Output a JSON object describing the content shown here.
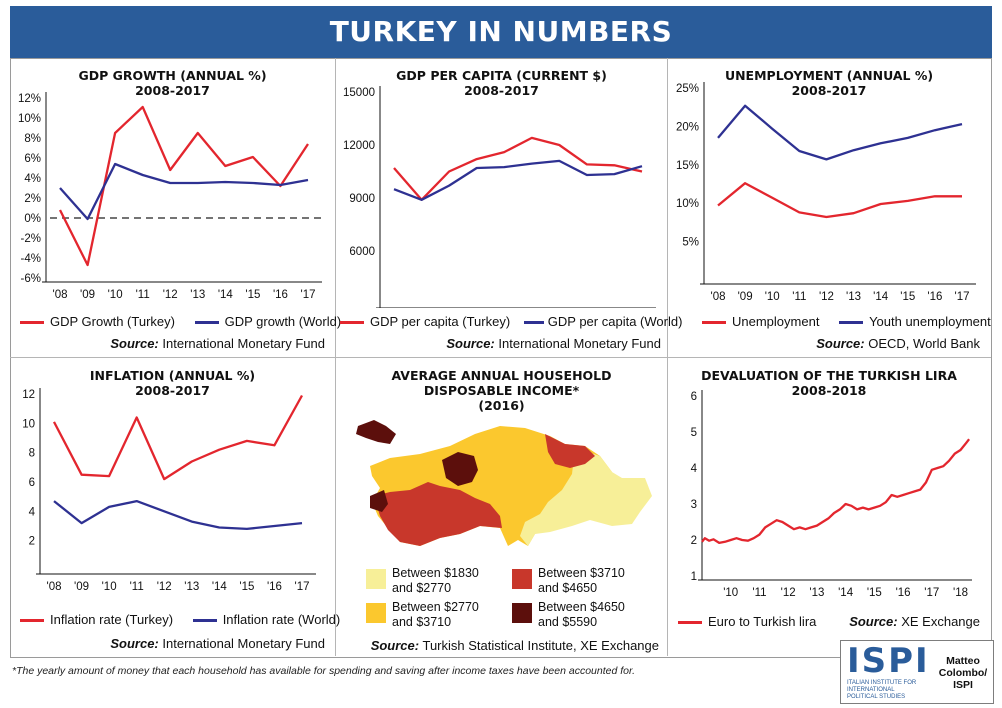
{
  "header": {
    "title": "TURKEY IN NUMBERS"
  },
  "footnote": "*The yearly amount of money that each household has available for spending and saving after income taxes have been accounted for.",
  "logo": {
    "name": "ISPI",
    "subtitle": "ITALIAN INSTITUTE FOR INTERNATIONAL POLITICAL STUDIES",
    "author": "Matteo Colombo/ ISPI"
  },
  "colors": {
    "red": "#e3262e",
    "navy": "#2e3192",
    "header_bg": "#2a5c9a"
  },
  "panels": {
    "gdp_growth": {
      "title": "GDP GROWTH (ANNUAL %)",
      "subtitle": "2008-2017",
      "legend": [
        "GDP Growth (Turkey)",
        "GDP growth (World)"
      ],
      "source_label": "Source:",
      "source_text": "International Monetary Fund"
    },
    "gdp_per_capita": {
      "title": "GDP PER CAPITA (CURRENT $)",
      "subtitle": "2008-2017",
      "legend": [
        "GDP per capita (Turkey)",
        "GDP per capita (World)"
      ],
      "source_label": "Source:",
      "source_text": "International Monetary Fund"
    },
    "unemployment": {
      "title": "UNEMPLOYMENT (ANNUAL %)",
      "subtitle": "2008-2017",
      "legend": [
        "Unemployment",
        "Youth unemployment"
      ],
      "source_label": "Source:",
      "source_text": "OECD, World Bank"
    },
    "inflation": {
      "title": "INFLATION (ANNUAL %)",
      "subtitle": "2008-2017",
      "legend": [
        "Inflation rate (Turkey)",
        "Inflation rate (World)"
      ],
      "source_label": "Source:",
      "source_text": "International Monetary Fund"
    },
    "income": {
      "title": "AVERAGE ANNUAL HOUSEHOLD",
      "title2": "DISPOSABLE INCOME*",
      "subtitle": "(2016)",
      "legend": [
        {
          "text": "Between $1830 and $2770",
          "color": "#f7ef98"
        },
        {
          "text": "Between $3710 and $4650",
          "color": "#c8372b"
        },
        {
          "text": "Between $2770 and $3710",
          "color": "#fbc82e"
        },
        {
          "text": "Between $4650 and $5590",
          "color": "#5c0f0c"
        }
      ],
      "source_label": "Source:",
      "source_text": "Turkish Statistical Institute, XE Exchange"
    },
    "lira": {
      "title": "DEVALUATION OF THE TURKISH LIRA",
      "subtitle": "2008-2018",
      "legend": [
        "Euro to Turkish lira"
      ],
      "source_label": "Source:",
      "source_text": "XE Exchange"
    }
  },
  "chart_data": [
    {
      "id": "gdp_growth",
      "type": "line",
      "x": [
        "'08",
        "'09",
        "'10",
        "'11",
        "'12",
        "'13",
        "'14",
        "'15",
        "'16",
        "'17"
      ],
      "yticks": [
        "12%",
        "10%",
        "8%",
        "6%",
        "4%",
        "2%",
        "0%",
        "-2%",
        "-4%",
        "-6%"
      ],
      "ylim": [
        -6,
        12
      ],
      "zero_line": "dashed",
      "series": [
        {
          "name": "GDP Growth (Turkey)",
          "color": "#e3262e",
          "values": [
            0.8,
            -4.7,
            8.5,
            11.1,
            4.8,
            8.5,
            5.2,
            6.1,
            3.2,
            7.4
          ]
        },
        {
          "name": "GDP growth (World)",
          "color": "#2e3192",
          "values": [
            3.0,
            -0.1,
            5.4,
            4.3,
            3.5,
            3.5,
            3.6,
            3.5,
            3.3,
            3.8
          ]
        }
      ]
    },
    {
      "id": "gdp_per_capita",
      "type": "line",
      "x": [
        "'08",
        "'09",
        "'10",
        "'11",
        "'12",
        "'13",
        "'14",
        "'15",
        "'16",
        "'17"
      ],
      "yticks": [
        "15000",
        "12000",
        "9000",
        "6000"
      ],
      "ylim": [
        3000,
        15000
      ],
      "series": [
        {
          "name": "GDP per capita (Turkey)",
          "color": "#e3262e",
          "values": [
            10700,
            8900,
            10500,
            11200,
            11600,
            12400,
            12000,
            10900,
            10850,
            10500
          ]
        },
        {
          "name": "GDP per capita (World)",
          "color": "#2e3192",
          "values": [
            9500,
            8900,
            9700,
            10700,
            10750,
            10950,
            11100,
            10300,
            10350,
            10800
          ]
        }
      ]
    },
    {
      "id": "unemployment",
      "type": "line",
      "x": [
        "'08",
        "'09",
        "'10",
        "'11",
        "'12",
        "'13",
        "'14",
        "'15",
        "'16",
        "'17"
      ],
      "yticks": [
        "25%",
        "20%",
        "15%",
        "10%",
        "5%"
      ],
      "ylim": [
        0,
        25
      ],
      "series": [
        {
          "name": "Unemployment",
          "color": "#e3262e",
          "values": [
            9.7,
            12.6,
            10.7,
            8.8,
            8.2,
            8.7,
            9.9,
            10.3,
            10.9,
            10.9
          ]
        },
        {
          "name": "Youth unemployment",
          "color": "#2e3192",
          "values": [
            18.5,
            22.7,
            19.7,
            16.8,
            15.7,
            16.9,
            17.8,
            18.5,
            19.5,
            20.3
          ]
        }
      ]
    },
    {
      "id": "inflation",
      "type": "line",
      "x": [
        "'08",
        "'09",
        "'10",
        "'11",
        "'12",
        "'13",
        "'14",
        "'15",
        "'16",
        "'17"
      ],
      "yticks": [
        "12",
        "10",
        "8",
        "6",
        "4",
        "2"
      ],
      "ylim": [
        0,
        12
      ],
      "series": [
        {
          "name": "Inflation rate (Turkey)",
          "color": "#e3262e",
          "values": [
            10.1,
            6.5,
            6.4,
            10.4,
            6.2,
            7.4,
            8.2,
            8.8,
            8.5,
            11.9
          ]
        },
        {
          "name": "Inflation rate (World)",
          "color": "#2e3192",
          "values": [
            4.7,
            3.2,
            4.3,
            4.7,
            4.0,
            3.3,
            2.9,
            2.8,
            3.0,
            3.2
          ]
        }
      ]
    },
    {
      "id": "lira",
      "type": "line",
      "xticks": [
        "'10",
        "'11",
        "'12",
        "'13",
        "'14",
        "'15",
        "'16",
        "'17",
        "'18"
      ],
      "xtick_years": [
        2010,
        2011,
        2012,
        2013,
        2014,
        2015,
        2016,
        2017,
        2018
      ],
      "xlim": [
        2009,
        2018.4
      ],
      "yticks": [
        "6",
        "5",
        "4",
        "3",
        "2",
        "1"
      ],
      "ylim": [
        1,
        6
      ],
      "series": [
        {
          "name": "Euro to Turkish lira",
          "color": "#e3262e",
          "x": [
            2009.0,
            2009.1,
            2009.25,
            2009.4,
            2009.6,
            2009.8,
            2010.0,
            2010.2,
            2010.4,
            2010.6,
            2010.8,
            2011.0,
            2011.2,
            2011.4,
            2011.6,
            2011.8,
            2012.0,
            2012.2,
            2012.4,
            2012.6,
            2012.8,
            2013.0,
            2013.2,
            2013.4,
            2013.6,
            2013.8,
            2014.0,
            2014.2,
            2014.4,
            2014.6,
            2014.8,
            2015.0,
            2015.2,
            2015.4,
            2015.6,
            2015.8,
            2016.0,
            2016.2,
            2016.4,
            2016.6,
            2016.8,
            2017.0,
            2017.2,
            2017.4,
            2017.6,
            2017.8,
            2018.0,
            2018.2,
            2018.3
          ],
          "values": [
            1.95,
            2.05,
            1.98,
            2.02,
            1.92,
            1.95,
            2.0,
            2.05,
            2.0,
            1.98,
            2.05,
            2.15,
            2.35,
            2.45,
            2.55,
            2.5,
            2.4,
            2.3,
            2.35,
            2.3,
            2.35,
            2.4,
            2.5,
            2.6,
            2.75,
            2.85,
            3.0,
            2.95,
            2.85,
            2.9,
            2.85,
            2.9,
            2.95,
            3.05,
            3.25,
            3.2,
            3.25,
            3.3,
            3.35,
            3.4,
            3.6,
            3.95,
            4.0,
            4.05,
            4.2,
            4.4,
            4.5,
            4.7,
            4.8
          ]
        }
      ]
    }
  ]
}
